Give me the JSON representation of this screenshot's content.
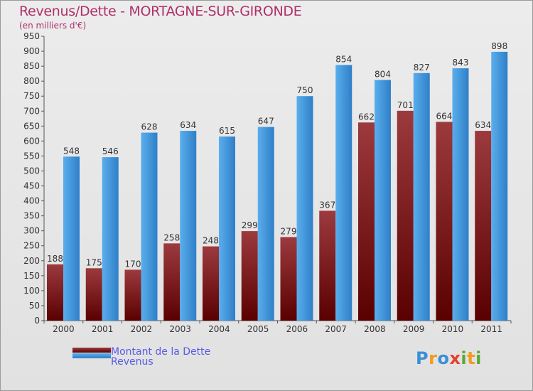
{
  "header": {
    "title": "Revenus/Dette - MORTAGNE-SUR-GIRONDE",
    "subtitle": "(en milliers d'€)"
  },
  "legend": {
    "items": [
      {
        "label": "Montant de la Dette",
        "color": "#6e0e12"
      },
      {
        "label": "Revenus",
        "color": "#4a9fe6"
      }
    ]
  },
  "logo": {
    "text": "Proxiti",
    "letters": [
      {
        "char": "P",
        "color": "#3a8fd8"
      },
      {
        "char": "r",
        "color": "#f29b1d"
      },
      {
        "char": "o",
        "color": "#3a8fd8"
      },
      {
        "char": "x",
        "color": "#e8402c"
      },
      {
        "char": "i",
        "color": "#5aa832"
      },
      {
        "char": "t",
        "color": "#f29b1d"
      },
      {
        "char": "i",
        "color": "#5aa832"
      }
    ]
  },
  "colors": {
    "title": "#b0306a",
    "dette_top": "#9c3a3e",
    "dette_bottom": "#5a0000",
    "revenus_top": "#5aaeec",
    "revenus_bottom": "#2f7fc8",
    "axis": "#555555"
  },
  "chart_data": {
    "type": "bar",
    "title": "Revenus/Dette - MORTAGNE-SUR-GIRONDE",
    "ylabel": "(en milliers d'€)",
    "xlabel": "",
    "categories": [
      "2000",
      "2001",
      "2002",
      "2003",
      "2004",
      "2005",
      "2006",
      "2007",
      "2008",
      "2009",
      "2010",
      "2011"
    ],
    "series": [
      {
        "name": "Montant de la Dette",
        "values": [
          188,
          175,
          170,
          258,
          248,
          299,
          279,
          367,
          662,
          701,
          664,
          634
        ]
      },
      {
        "name": "Revenus",
        "values": [
          548,
          546,
          628,
          634,
          615,
          647,
          750,
          854,
          804,
          827,
          843,
          898
        ]
      }
    ],
    "ylim": [
      0,
      950
    ],
    "ytick_step": 50,
    "grid": false,
    "legend_position": "bottom-left"
  }
}
